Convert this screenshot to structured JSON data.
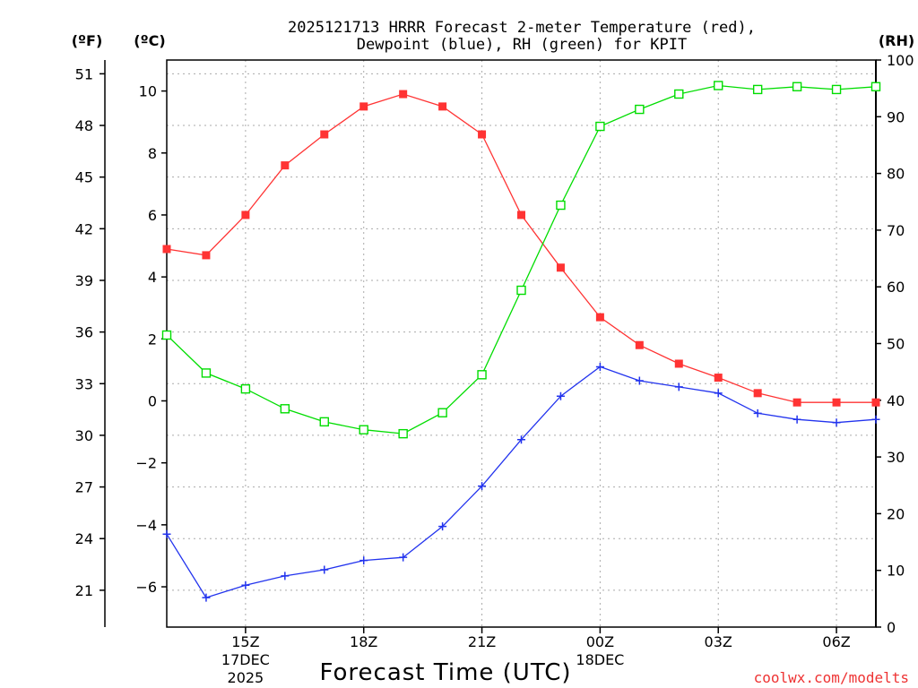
{
  "chart_data": {
    "type": "line",
    "title_line1": "2025121713 HRRR Forecast 2-meter Temperature (red),",
    "title_line2": "Dewpoint (blue), RH (green) for KPIT",
    "xlabel": "Forecast Time (UTC)",
    "left_outer_unit": "(ºF)",
    "left_inner_unit": "(ºC)",
    "right_unit": "(RH)",
    "credit": "coolwx.com/modelts",
    "x": [
      13,
      14,
      15,
      16,
      17,
      18,
      19,
      20,
      21,
      22,
      23,
      24,
      25,
      26,
      27,
      28,
      29,
      30,
      31
    ],
    "xlim": [
      13,
      31
    ],
    "x_ticks": [
      {
        "x": 15,
        "label": "15Z",
        "sub1": "17DEC",
        "sub2": "2025"
      },
      {
        "x": 18,
        "label": "18Z",
        "sub1": "",
        "sub2": ""
      },
      {
        "x": 21,
        "label": "21Z",
        "sub1": "",
        "sub2": ""
      },
      {
        "x": 24,
        "label": "00Z",
        "sub1": "18DEC",
        "sub2": ""
      },
      {
        "x": 27,
        "label": "03Z",
        "sub1": "",
        "sub2": ""
      },
      {
        "x": 30,
        "label": "06Z",
        "sub1": "",
        "sub2": ""
      }
    ],
    "ylim_c": [
      -7.3,
      11
    ],
    "y_ticks_c": [
      "-6",
      "-4",
      "-2",
      "0",
      "2",
      "4",
      "6",
      "8",
      "10"
    ],
    "y_ticks_f": [
      "21",
      "24",
      "27",
      "30",
      "33",
      "36",
      "39",
      "42",
      "45",
      "48",
      "51"
    ],
    "ylim_rh": [
      0,
      100
    ],
    "y_ticks_rh": [
      "0",
      "10",
      "20",
      "30",
      "40",
      "50",
      "60",
      "70",
      "80",
      "90",
      "100"
    ],
    "series": [
      {
        "name": "Temperature",
        "axis": "C",
        "color": "#ff3333",
        "marker": "filled-square",
        "values": [
          4.9,
          4.7,
          6.0,
          7.6,
          8.6,
          9.5,
          9.9,
          9.5,
          8.6,
          6.0,
          4.3,
          2.7,
          1.8,
          1.2,
          0.75,
          0.25,
          -0.05,
          -0.05,
          -0.05
        ]
      },
      {
        "name": "Dewpoint",
        "axis": "C",
        "color": "#2233ee",
        "marker": "plus",
        "values": [
          -4.3,
          -6.35,
          -5.95,
          -5.65,
          -5.45,
          -5.15,
          -5.05,
          -4.05,
          -2.75,
          -1.25,
          0.15,
          1.1,
          0.65,
          0.45,
          0.25,
          -0.4,
          -0.6,
          -0.7,
          -0.6
        ]
      },
      {
        "name": "RH",
        "axis": "RH",
        "color": "#00dd00",
        "marker": "open-square",
        "values": [
          51.5,
          44.8,
          42.0,
          38.5,
          36.2,
          34.8,
          34.1,
          37.8,
          44.5,
          59.4,
          74.4,
          88.3,
          91.3,
          94.0,
          95.5,
          94.8,
          95.3,
          94.8,
          95.3
        ]
      }
    ]
  }
}
